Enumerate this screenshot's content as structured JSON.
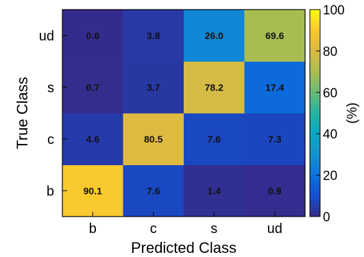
{
  "chart_data": {
    "type": "heatmap",
    "title": "",
    "xlabel": "Predicted Class",
    "ylabel": "True Class",
    "x_categories": [
      "b",
      "c",
      "s",
      "ud"
    ],
    "y_categories": [
      "b",
      "c",
      "s",
      "ud"
    ],
    "values": [
      [
        90.1,
        7.6,
        1.4,
        0.9
      ],
      [
        4.6,
        80.5,
        7.6,
        7.3
      ],
      [
        0.7,
        3.7,
        78.2,
        17.4
      ],
      [
        0.6,
        3.8,
        26.0,
        69.6
      ]
    ],
    "value_labels": [
      [
        "90.1",
        "7.6",
        "1.4",
        "0.9"
      ],
      [
        "4.6",
        "80.5",
        "7.6",
        "7.3"
      ],
      [
        "0.7",
        "3.7",
        "78.2",
        "17.4"
      ],
      [
        "0.6",
        "3.8",
        "26.0",
        "69.6"
      ]
    ],
    "colorbar": {
      "label": "(%)",
      "range": [
        0,
        100
      ],
      "ticks": [
        "0",
        "20",
        "40",
        "60",
        "80",
        "100"
      ],
      "colormap": "parula"
    }
  }
}
